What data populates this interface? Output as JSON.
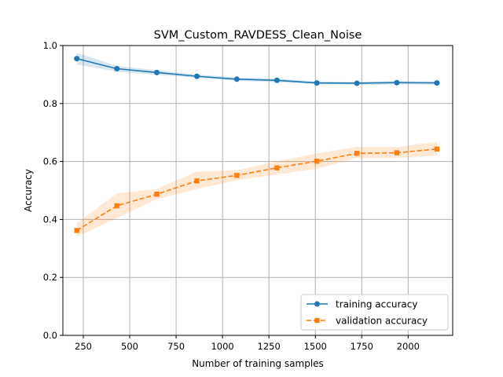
{
  "chart_data": {
    "type": "line",
    "title": "SVM_Custom_RAVDESS_Clean_Noise",
    "xlabel": "Number of training samples",
    "ylabel": "Accuracy",
    "xlim": [
      140,
      2240
    ],
    "ylim": [
      0.0,
      1.0
    ],
    "grid": true,
    "legend_position": "lower-right",
    "xticks": [
      250,
      500,
      750,
      1000,
      1250,
      1500,
      1750,
      2000
    ],
    "yticks": [
      0.0,
      0.2,
      0.4,
      0.6,
      0.8,
      1.0
    ],
    "x": [
      215,
      431,
      646,
      862,
      1077,
      1293,
      1508,
      1724,
      1939,
      2155
    ],
    "series": [
      {
        "name": "training accuracy",
        "color": "#1f77b4",
        "marker": "circle",
        "linestyle": "solid",
        "values": [
          0.955,
          0.92,
          0.907,
          0.894,
          0.884,
          0.88,
          0.871,
          0.87,
          0.872,
          0.871
        ],
        "band_low": [
          0.935,
          0.91,
          0.899,
          0.889,
          0.878,
          0.874,
          0.866,
          0.865,
          0.866,
          0.866
        ],
        "band_high": [
          0.975,
          0.93,
          0.915,
          0.9,
          0.89,
          0.886,
          0.876,
          0.875,
          0.878,
          0.876
        ]
      },
      {
        "name": "validation accuracy",
        "color": "#ff7f0e",
        "marker": "square",
        "linestyle": "dashed",
        "values": [
          0.362,
          0.447,
          0.487,
          0.533,
          0.552,
          0.578,
          0.601,
          0.628,
          0.63,
          0.643
        ],
        "band_low": [
          0.34,
          0.405,
          0.47,
          0.505,
          0.535,
          0.555,
          0.575,
          0.612,
          0.612,
          0.62
        ],
        "band_high": [
          0.387,
          0.49,
          0.505,
          0.565,
          0.57,
          0.6,
          0.628,
          0.65,
          0.65,
          0.668
        ]
      }
    ]
  }
}
